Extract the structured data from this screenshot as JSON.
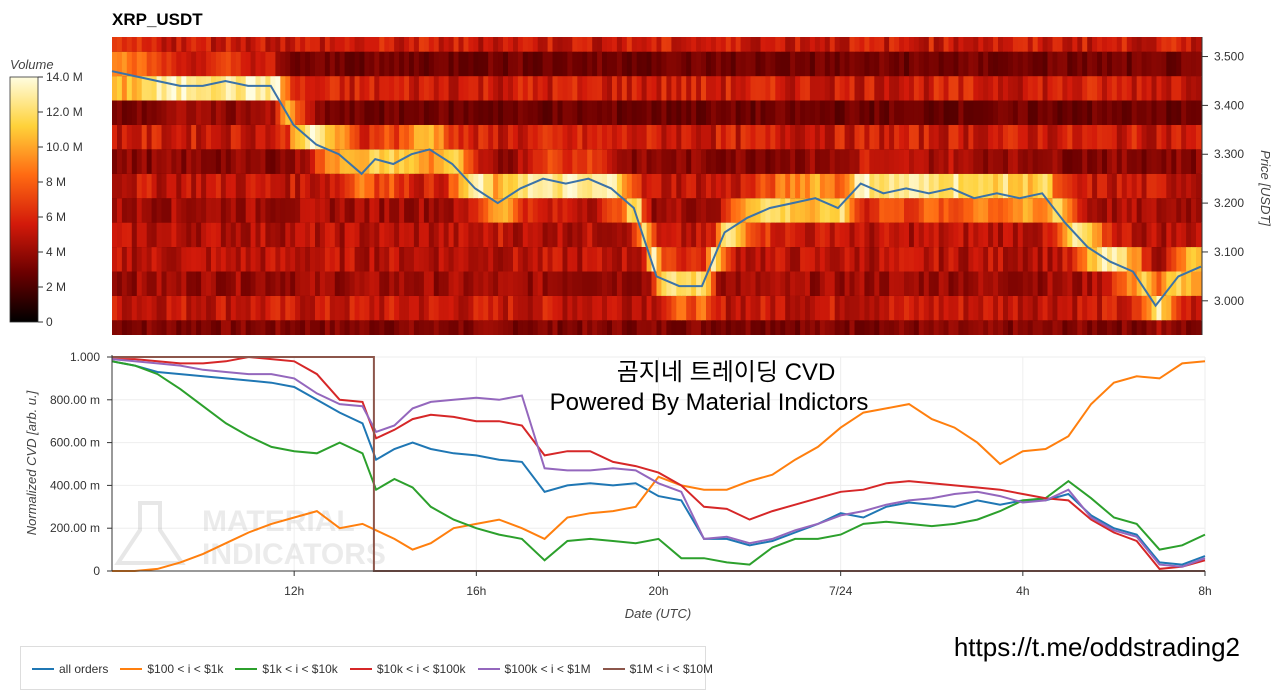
{
  "chart_data": [
    {
      "type": "heatmap",
      "title": "XRP_USDT",
      "ylabel": "Price [USDT]",
      "colorbar_label": "Volume",
      "colorbar_ticks": [
        "14.0 M",
        "12.0 M",
        "10.0 M",
        "8 M",
        "6 M",
        "4 M",
        "2 M",
        "0"
      ],
      "colorbar_range": [
        0,
        14
      ],
      "y_ticks": [
        "3.500",
        "3.400",
        "3.300",
        "3.200",
        "3.100",
        "3.000"
      ],
      "ylim": [
        2.93,
        3.54
      ],
      "price_line": {
        "name": "price",
        "color": "#3b73a8",
        "x": [
          0,
          0.5,
          1,
          1.5,
          2,
          2.5,
          3,
          3.5,
          4,
          4.5,
          5,
          5.5,
          5.8,
          6.2,
          6.6,
          7,
          7.5,
          8,
          8.5,
          9,
          9.5,
          10,
          10.5,
          11,
          11.5,
          12,
          12.5,
          13,
          13.5,
          14,
          14.5,
          15,
          15.5,
          16,
          16.5,
          17,
          17.5,
          18,
          18.5,
          19,
          19.5,
          20,
          20.5,
          21,
          21.5,
          22,
          22.5,
          23,
          23.5,
          24
        ],
        "values": [
          3.47,
          3.46,
          3.45,
          3.44,
          3.44,
          3.45,
          3.44,
          3.44,
          3.36,
          3.32,
          3.3,
          3.26,
          3.29,
          3.28,
          3.3,
          3.31,
          3.28,
          3.23,
          3.2,
          3.23,
          3.25,
          3.24,
          3.25,
          3.23,
          3.19,
          3.05,
          3.03,
          3.03,
          3.14,
          3.17,
          3.19,
          3.2,
          3.21,
          3.19,
          3.24,
          3.22,
          3.23,
          3.22,
          3.23,
          3.21,
          3.22,
          3.21,
          3.22,
          3.16,
          3.11,
          3.08,
          3.06,
          2.99,
          3.05,
          3.07
        ]
      }
    },
    {
      "type": "line",
      "title": "",
      "xlabel": "Date (UTC)",
      "ylabel": "Normalized CVD [arb. u.]",
      "x_ticks": [
        {
          "x": 4,
          "label": "12h"
        },
        {
          "x": 8,
          "label": "16h"
        },
        {
          "x": 12,
          "label": "20h"
        },
        {
          "x": 16,
          "label": "7/24"
        },
        {
          "x": 20,
          "label": "4h"
        },
        {
          "x": 24,
          "label": "8h"
        }
      ],
      "y_ticks": [
        {
          "y": 0,
          "label": "0"
        },
        {
          "y": 0.2,
          "label": "200.00 m"
        },
        {
          "y": 0.4,
          "label": "400.00 m"
        },
        {
          "y": 0.6,
          "label": "600.00 m"
        },
        {
          "y": 0.8,
          "label": "800.00 m"
        },
        {
          "y": 1.0,
          "label": "1.000"
        }
      ],
      "xlim": [
        0,
        24
      ],
      "ylim": [
        0,
        1
      ],
      "x": [
        0,
        0.5,
        1,
        1.5,
        2,
        2.5,
        3,
        3.5,
        4,
        4.5,
        5,
        5.5,
        5.8,
        6.2,
        6.6,
        7,
        7.5,
        8,
        8.5,
        9,
        9.5,
        10,
        10.5,
        11,
        11.5,
        12,
        12.5,
        13,
        13.5,
        14,
        14.5,
        15,
        15.5,
        16,
        16.5,
        17,
        17.5,
        18,
        18.5,
        19,
        19.5,
        20,
        20.5,
        21,
        21.5,
        22,
        22.5,
        23,
        23.5,
        24
      ],
      "series": [
        {
          "name": "all orders",
          "color": "#1f77b4",
          "values": [
            0.98,
            0.96,
            0.93,
            0.92,
            0.91,
            0.9,
            0.89,
            0.88,
            0.86,
            0.8,
            0.74,
            0.69,
            0.52,
            0.57,
            0.6,
            0.57,
            0.55,
            0.54,
            0.52,
            0.51,
            0.37,
            0.4,
            0.41,
            0.4,
            0.41,
            0.35,
            0.33,
            0.15,
            0.15,
            0.12,
            0.14,
            0.18,
            0.22,
            0.27,
            0.25,
            0.3,
            0.32,
            0.31,
            0.3,
            0.33,
            0.31,
            0.33,
            0.33,
            0.36,
            0.26,
            0.2,
            0.17,
            0.04,
            0.03,
            0.07
          ]
        },
        {
          "name": "$100 < i < $1k",
          "color": "#ff7f0e",
          "values": [
            0.0,
            0.0,
            0.01,
            0.04,
            0.08,
            0.13,
            0.18,
            0.22,
            0.25,
            0.28,
            0.2,
            0.22,
            0.19,
            0.15,
            0.1,
            0.13,
            0.2,
            0.22,
            0.24,
            0.2,
            0.15,
            0.25,
            0.27,
            0.28,
            0.3,
            0.44,
            0.4,
            0.38,
            0.38,
            0.42,
            0.45,
            0.52,
            0.58,
            0.67,
            0.74,
            0.76,
            0.78,
            0.71,
            0.67,
            0.6,
            0.5,
            0.56,
            0.57,
            0.63,
            0.78,
            0.88,
            0.91,
            0.9,
            0.97,
            0.98
          ]
        },
        {
          "name": "$1k < i < $10k",
          "color": "#2ca02c",
          "values": [
            0.98,
            0.96,
            0.92,
            0.85,
            0.77,
            0.69,
            0.63,
            0.58,
            0.56,
            0.55,
            0.6,
            0.55,
            0.38,
            0.43,
            0.39,
            0.3,
            0.24,
            0.2,
            0.17,
            0.15,
            0.05,
            0.14,
            0.15,
            0.14,
            0.13,
            0.15,
            0.06,
            0.06,
            0.04,
            0.03,
            0.11,
            0.15,
            0.15,
            0.17,
            0.22,
            0.23,
            0.22,
            0.21,
            0.22,
            0.24,
            0.28,
            0.33,
            0.34,
            0.42,
            0.34,
            0.25,
            0.22,
            0.1,
            0.12,
            0.17
          ]
        },
        {
          "name": "$10k < i < $100k",
          "color": "#d62728",
          "values": [
            0.99,
            0.99,
            0.98,
            0.97,
            0.97,
            0.98,
            1.0,
            0.99,
            0.98,
            0.92,
            0.8,
            0.79,
            0.62,
            0.66,
            0.71,
            0.73,
            0.72,
            0.7,
            0.7,
            0.68,
            0.54,
            0.56,
            0.56,
            0.51,
            0.49,
            0.46,
            0.4,
            0.3,
            0.29,
            0.24,
            0.28,
            0.31,
            0.34,
            0.37,
            0.38,
            0.41,
            0.42,
            0.41,
            0.4,
            0.39,
            0.38,
            0.36,
            0.34,
            0.33,
            0.24,
            0.18,
            0.14,
            0.01,
            0.02,
            0.05
          ]
        },
        {
          "name": "$100k < i < $1M",
          "color": "#9467bd",
          "values": [
            0.99,
            0.98,
            0.97,
            0.96,
            0.94,
            0.93,
            0.92,
            0.92,
            0.9,
            0.83,
            0.78,
            0.77,
            0.65,
            0.68,
            0.76,
            0.79,
            0.8,
            0.81,
            0.8,
            0.82,
            0.48,
            0.47,
            0.47,
            0.48,
            0.47,
            0.41,
            0.37,
            0.15,
            0.16,
            0.13,
            0.15,
            0.19,
            0.22,
            0.26,
            0.28,
            0.31,
            0.33,
            0.34,
            0.36,
            0.37,
            0.35,
            0.32,
            0.33,
            0.38,
            0.25,
            0.19,
            0.16,
            0.03,
            0.02,
            0.06
          ]
        },
        {
          "name": "$1M < i < $10M",
          "color": "#8c564b",
          "values": [
            1.0,
            1.0,
            1.0,
            1.0,
            1.0,
            1.0,
            1.0,
            1.0,
            1.0,
            1.0,
            1.0,
            1.0,
            0.0,
            0.0,
            0.0,
            0.0,
            0.0,
            0.0,
            0.0,
            0.0,
            0.0,
            0.0,
            0.0,
            0.0,
            0.0,
            0.0,
            0.0,
            0.0,
            0.0,
            0.0,
            0.0,
            0.0,
            0.0,
            0.0,
            0.0,
            0.0,
            0.0,
            0.0,
            0.0,
            0.0,
            0.0,
            0.0,
            0.0,
            0.0,
            0.0,
            0.0,
            0.0,
            0.0,
            0.0,
            0.0
          ]
        }
      ]
    }
  ],
  "overlay": {
    "line1": "곰지네 트레이딩 CVD",
    "line2": "Powered By Material Indictors"
  },
  "watermark": {
    "line1": "MATERIAL",
    "line2": "INDICATORS"
  },
  "link": "https://t.me/oddstrading2"
}
